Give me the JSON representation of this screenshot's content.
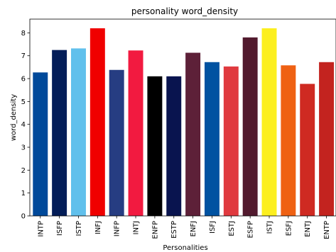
{
  "chart_data": {
    "type": "bar",
    "title": "personality word_density",
    "xlabel": "Personalities",
    "ylabel": "word_density",
    "ylim": [
      0,
      8.6
    ],
    "yticks": [
      0,
      1,
      2,
      3,
      4,
      5,
      6,
      7,
      8
    ],
    "grid": false,
    "categories": [
      "INTP",
      "ISFP",
      "ISTP",
      "INFJ",
      "INFP",
      "INTJ",
      "ENFP",
      "ESTP",
      "ENFJ",
      "ISFJ",
      "ESTJ",
      "ESFP",
      "ISTJ",
      "ESFJ",
      "ENTJ",
      "ENTP"
    ],
    "values": [
      6.27,
      7.25,
      7.32,
      8.2,
      6.38,
      7.23,
      6.1,
      6.1,
      7.13,
      6.72,
      6.53,
      7.8,
      8.2,
      6.58,
      5.77,
      6.72
    ],
    "colors": [
      "#00499a",
      "#031d58",
      "#61c0ec",
      "#f00000",
      "#263d82",
      "#f21a40",
      "#000000",
      "#09144f",
      "#5d2038",
      "#0052a1",
      "#e03a3f",
      "#521a2e",
      "#fcef1f",
      "#ef6113",
      "#cf2a22",
      "#c3231f"
    ]
  }
}
